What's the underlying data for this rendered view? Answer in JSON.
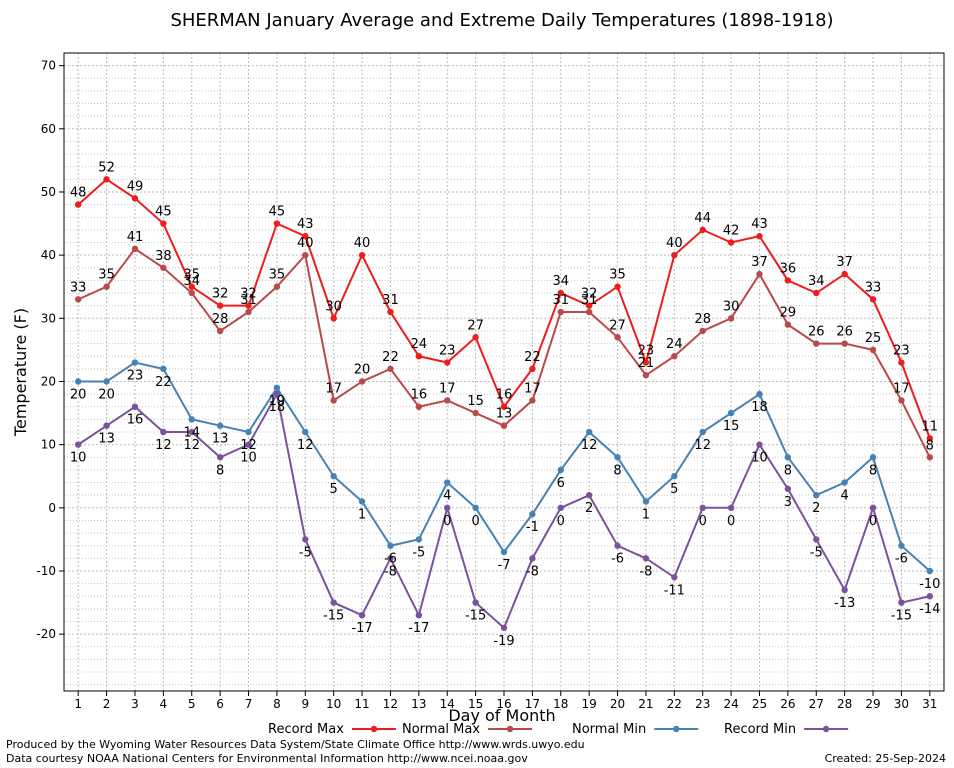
{
  "chart_data": {
    "type": "line",
    "title": "SHERMAN January Average and Extreme Daily Temperatures (1898-1918)",
    "xlabel": "Day of Month",
    "ylabel": "Temperature (F)",
    "ylim": [
      -29,
      72
    ],
    "xlim": [
      0.5,
      31.5
    ],
    "yticks": [
      -20,
      -10,
      0,
      10,
      20,
      30,
      40,
      50,
      60,
      70
    ],
    "x": [
      1,
      2,
      3,
      4,
      5,
      6,
      7,
      8,
      9,
      10,
      11,
      12,
      13,
      14,
      15,
      16,
      17,
      18,
      19,
      20,
      21,
      22,
      23,
      24,
      25,
      26,
      27,
      28,
      29,
      30,
      31
    ],
    "grid": true,
    "legend_position": "bottom",
    "series": [
      {
        "name": "Record Max",
        "color": "#ee1c1c",
        "values": [
          48,
          52,
          49,
          45,
          35,
          32,
          32,
          45,
          43,
          30,
          40,
          31,
          24,
          23,
          27,
          16,
          22,
          34,
          32,
          35,
          23,
          40,
          44,
          42,
          43,
          36,
          34,
          37,
          33,
          23,
          11
        ]
      },
      {
        "name": "Normal Max",
        "color": "#b84a4a",
        "values": [
          33,
          35,
          41,
          38,
          34,
          28,
          31,
          35,
          40,
          17,
          20,
          22,
          16,
          17,
          15,
          13,
          17,
          31,
          31,
          27,
          21,
          24,
          28,
          30,
          37,
          29,
          26,
          26,
          25,
          17,
          8
        ]
      },
      {
        "name": "Normal Min",
        "color": "#4682b4",
        "values": [
          20,
          20,
          23,
          22,
          14,
          13,
          12,
          19,
          12,
          5,
          1,
          -6,
          -5,
          4,
          0,
          -7,
          -1,
          6,
          12,
          8,
          1,
          5,
          12,
          15,
          18,
          8,
          2,
          4,
          8,
          -6,
          -10
        ]
      },
      {
        "name": "Record Min",
        "color": "#7b529c",
        "values": [
          10,
          13,
          16,
          12,
          12,
          8,
          10,
          18,
          -5,
          -15,
          -17,
          -8,
          -17,
          0,
          -15,
          -19,
          -8,
          0,
          2,
          -6,
          -8,
          -11,
          0,
          0,
          10,
          3,
          -5,
          -13,
          0,
          -15,
          -14
        ]
      }
    ]
  },
  "footer": {
    "line1": "Produced by the Wyoming Water Resources Data System/State Climate Office http://www.wrds.uwyo.edu",
    "line2": "Data courtesy NOAA National Centers for Environmental Information http://www.ncei.noaa.gov",
    "created": "Created:  25-Sep-2024"
  }
}
